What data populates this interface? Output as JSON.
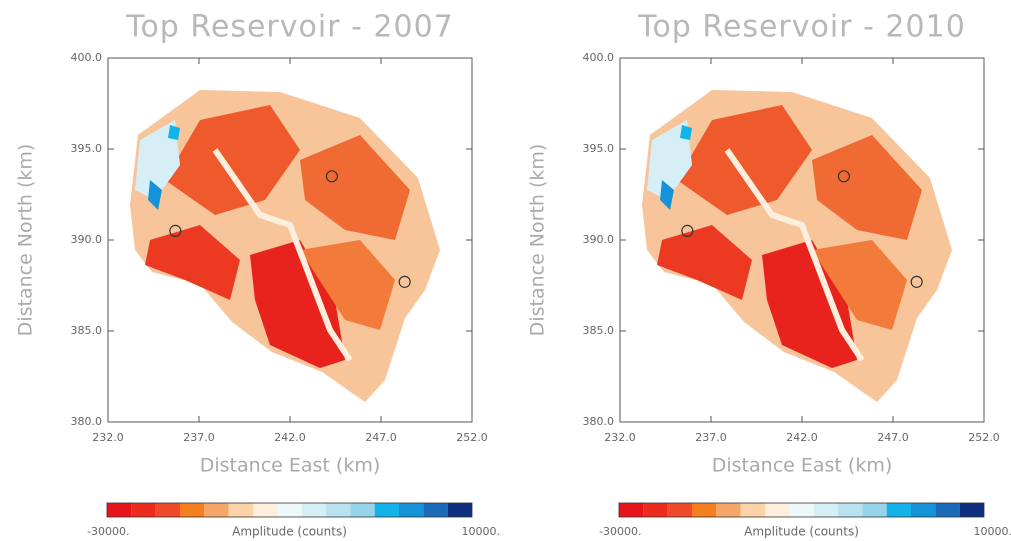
{
  "chart_data": [
    {
      "type": "heatmap",
      "title": "Top Reservoir - 2007",
      "xlabel": "Distance East (km)",
      "ylabel": "Distance North (km)",
      "xlim": [
        232,
        252
      ],
      "ylim": [
        380,
        400
      ],
      "xticks": [
        {
          "value": 232,
          "label": "232.0"
        },
        {
          "value": 237,
          "label": "237.0"
        },
        {
          "value": 242,
          "label": "242.0"
        },
        {
          "value": 247,
          "label": "247.0"
        },
        {
          "value": 252,
          "label": "252.0"
        }
      ],
      "yticks": [
        {
          "value": 380,
          "label": "380.0"
        },
        {
          "value": 385,
          "label": "385.0"
        },
        {
          "value": 390,
          "label": "390.0"
        },
        {
          "value": 395,
          "label": "395.0"
        },
        {
          "value": 400,
          "label": "400.0"
        }
      ],
      "points": {
        "x": [
          235.7,
          244.3,
          248.3
        ],
        "y": [
          390.5,
          393.5,
          387.7
        ]
      },
      "colorbar": {
        "label": "Amplitude (counts)",
        "min": {
          "value": -30000,
          "label": "-30000."
        },
        "max": {
          "value": 10000,
          "label": "10000."
        },
        "colors": [
          "#e8141a",
          "#ec2b1f",
          "#f04a2a",
          "#f57f20",
          "#f7a66a",
          "#fbd3a7",
          "#fdeedd",
          "#eef8fb",
          "#d6eef6",
          "#b9e1ee",
          "#96d2e8",
          "#10b4e8",
          "#1693d8",
          "#1a6ab8",
          "#0e2e7e"
        ]
      }
    },
    {
      "type": "heatmap",
      "title": "Top Reservoir - 2010",
      "xlabel": "Distance East (km)",
      "ylabel": "Distance North (km)",
      "xlim": [
        232,
        252
      ],
      "ylim": [
        380,
        400
      ],
      "xticks": [
        {
          "value": 232,
          "label": "232.0"
        },
        {
          "value": 237,
          "label": "237.0"
        },
        {
          "value": 242,
          "label": "242.0"
        },
        {
          "value": 247,
          "label": "247.0"
        },
        {
          "value": 252,
          "label": "252.0"
        }
      ],
      "yticks": [
        {
          "value": 380,
          "label": "380.0"
        },
        {
          "value": 385,
          "label": "385.0"
        },
        {
          "value": 390,
          "label": "390.0"
        },
        {
          "value": 395,
          "label": "395.0"
        },
        {
          "value": 400,
          "label": "400.0"
        }
      ],
      "points": {
        "x": [
          235.7,
          244.3,
          248.3
        ],
        "y": [
          390.5,
          393.5,
          387.7
        ]
      },
      "colorbar": {
        "label": "Amplitude (counts)",
        "min": {
          "value": -30000,
          "label": "-30000."
        },
        "max": {
          "value": 10000,
          "label": "10000."
        },
        "colors": [
          "#e8141a",
          "#ec2b1f",
          "#f04a2a",
          "#f57f20",
          "#f7a66a",
          "#fbd3a7",
          "#fdeedd",
          "#eef8fb",
          "#d6eef6",
          "#b9e1ee",
          "#96d2e8",
          "#10b4e8",
          "#1693d8",
          "#1a6ab8",
          "#0e2e7e"
        ]
      }
    }
  ]
}
